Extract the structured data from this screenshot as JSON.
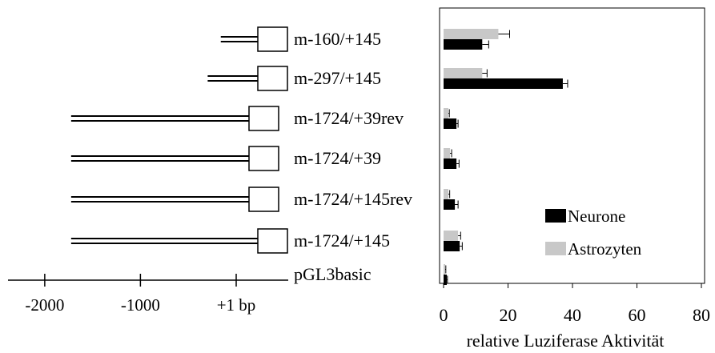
{
  "colors": {
    "neurone": "#000000",
    "astrozyten": "#c8c8c8",
    "line": "#000000"
  },
  "constructs": [
    {
      "label": "m-160/+145",
      "start": -160
    },
    {
      "label": "m-297/+145",
      "start": -297
    },
    {
      "label": "m-1724/+39rev",
      "start": -1724
    },
    {
      "label": "m-1724/+39",
      "start": -1724
    },
    {
      "label": "m-1724/+145rev",
      "start": -1724
    },
    {
      "label": "m-1724/+145",
      "start": -1724
    },
    {
      "label": "pGL3basic",
      "start": null
    }
  ],
  "map_axis": {
    "ticks": [
      {
        "value": -2000,
        "label": "-2000"
      },
      {
        "value": -1000,
        "label": "-1000"
      },
      {
        "value": 1,
        "label": "+1 bp"
      }
    ]
  },
  "chart_data": {
    "type": "bar",
    "orientation": "horizontal",
    "categories": [
      "m-160/+145",
      "m-297/+145",
      "m-1724/+39rev",
      "m-1724/+39",
      "m-1724/+145rev",
      "m-1724/+145",
      "pGL3basic"
    ],
    "series": [
      {
        "name": "Astrozyten",
        "values": [
          17,
          12,
          1.5,
          2,
          1.5,
          4.5,
          0.5
        ],
        "errors": [
          3.5,
          1.5,
          0.3,
          0.5,
          0.4,
          0.8,
          0.2
        ]
      },
      {
        "name": "Neurone",
        "values": [
          12,
          37,
          4,
          4,
          3.5,
          5,
          1
        ],
        "errors": [
          2,
          1.5,
          0.5,
          0.8,
          1,
          0.8,
          0.2
        ]
      }
    ],
    "xlabel": "relative Luziferase Aktivität",
    "xlim": [
      0,
      80
    ],
    "xticks": [
      0,
      20,
      40,
      60,
      80
    ],
    "legend": {
      "placement": "lower-right",
      "entries": [
        "Neurone",
        "Astrozyten"
      ]
    },
    "grid": false
  }
}
